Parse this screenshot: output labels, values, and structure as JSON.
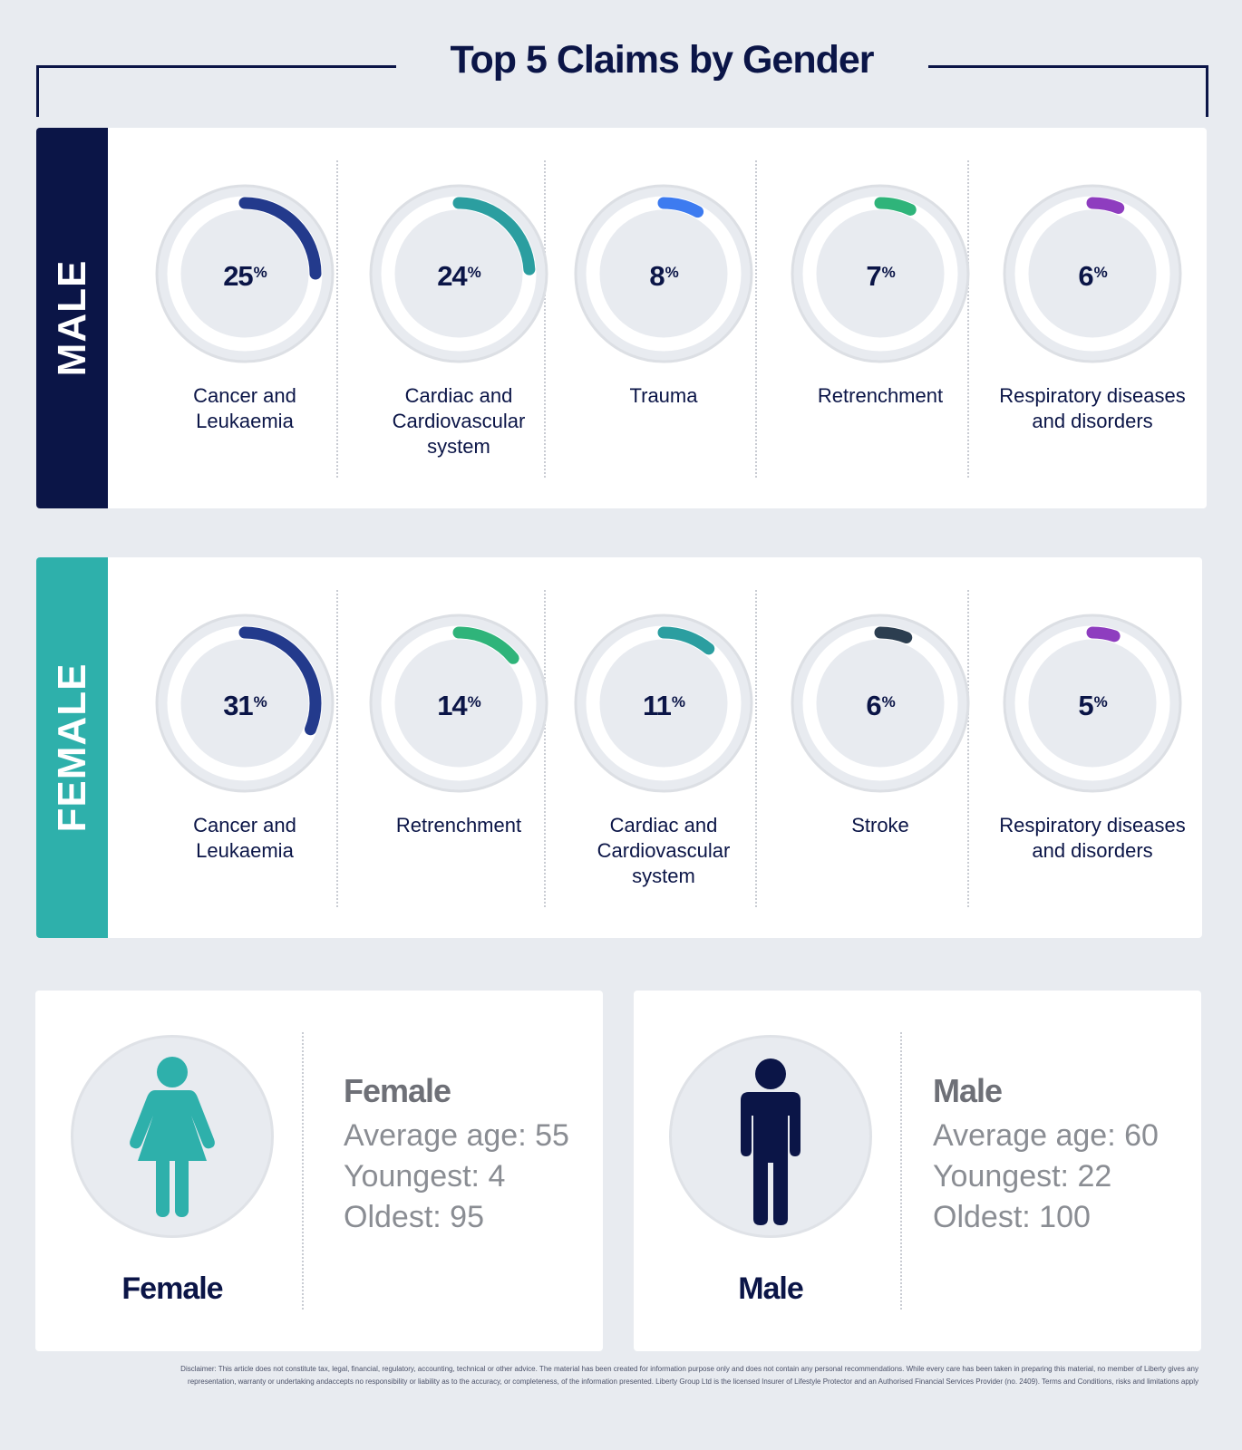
{
  "title": "Top 5 Claims by Gender",
  "colors": {
    "navy": "#0b1547",
    "teal": "#2eb0ab",
    "background": "#e8ebf0"
  },
  "chart_data": [
    {
      "type": "donut",
      "group": "MALE",
      "categories": [
        "Cancer and Leukaemia",
        "Cardiac and Cardiovascular system",
        "Trauma",
        "Retrenchment",
        "Respiratory diseases and disorders"
      ],
      "values": [
        25,
        24,
        8,
        7,
        6
      ],
      "unit": "%",
      "colors": [
        "#233a8c",
        "#2b9ea0",
        "#3d7bf0",
        "#2fb47a",
        "#8e3dbf"
      ],
      "labels_lines": [
        [
          "Cancer and",
          "Leukaemia"
        ],
        [
          "Cardiac and",
          "Cardiovascular",
          "system"
        ],
        [
          "Trauma"
        ],
        [
          "Retrenchment"
        ],
        [
          "Respiratory diseases",
          "and disorders"
        ]
      ]
    },
    {
      "type": "donut",
      "group": "FEMALE",
      "categories": [
        "Cancer and Leukaemia",
        "Retrenchment",
        "Cardiac and Cardiovascular system",
        "Stroke",
        "Respiratory diseases and disorders"
      ],
      "values": [
        31,
        14,
        11,
        6,
        5
      ],
      "unit": "%",
      "colors": [
        "#233a8c",
        "#2fb47a",
        "#2b9ea0",
        "#2c3e50",
        "#8e3dbf"
      ],
      "labels_lines": [
        [
          "Cancer and",
          "Leukaemia"
        ],
        [
          "Retrenchment"
        ],
        [
          "Cardiac and",
          "Cardiovascular",
          "system"
        ],
        [
          "Stroke"
        ],
        [
          "Respiratory diseases",
          "and disorders"
        ]
      ]
    }
  ],
  "male_panel": {
    "side_label": "MALE"
  },
  "female_panel": {
    "side_label": "FEMALE"
  },
  "female_card": {
    "icon": "female-figure-icon",
    "caption": "Female",
    "heading": "Female",
    "average_age": "Average age: 55",
    "youngest": "Youngest:  4",
    "oldest": "Oldest:  95"
  },
  "male_card": {
    "icon": "male-figure-icon",
    "caption": "Male",
    "heading": "Male",
    "average_age": "Average age: 60",
    "youngest": "Youngest: 22",
    "oldest": "Oldest: 100"
  },
  "disclaimer_lines": [
    "Disclaimer: This article does not constitute tax, legal, financial, regulatory, accounting, technical or other advice. The material has been created for information purpose only and does not contain any personal recommendations. While every care has been taken in preparing this material, no member of Liberty gives any",
    "representation, warranty or undertaking andaccepts no responsibility or liability as to the accuracy, or completeness, of the information presented. Liberty Group Ltd is the licensed Insurer of Lifestyle Protector and an Authorised Financial Services Provider (no. 2409). Terms and Conditions, risks and limitations apply"
  ]
}
